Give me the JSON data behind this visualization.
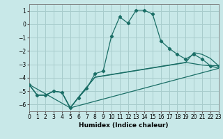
{
  "xlabel": "Humidex (Indice chaleur)",
  "background_color": "#c8e8e8",
  "grid_color": "#a8cccc",
  "line_color": "#1a6e66",
  "xlim": [
    0,
    23
  ],
  "ylim": [
    -6.5,
    1.5
  ],
  "yticks": [
    1,
    0,
    -1,
    -2,
    -3,
    -4,
    -5,
    -6
  ],
  "xticks": [
    0,
    1,
    2,
    3,
    4,
    5,
    6,
    7,
    8,
    9,
    10,
    11,
    12,
    13,
    14,
    15,
    16,
    17,
    18,
    19,
    20,
    21,
    22,
    23
  ],
  "curve1_x": [
    0,
    1,
    2,
    3,
    4,
    5,
    6,
    7,
    8,
    9,
    10,
    11,
    12,
    13,
    14,
    15,
    16,
    17,
    18,
    19,
    20,
    21,
    22,
    23
  ],
  "curve1_y": [
    -4.5,
    -5.3,
    -5.3,
    -5.0,
    -5.1,
    -6.25,
    -5.5,
    -4.8,
    -3.7,
    -3.5,
    -0.9,
    0.55,
    0.08,
    1.05,
    1.05,
    0.75,
    -1.25,
    -1.8,
    -2.25,
    -2.6,
    -2.25,
    -2.6,
    -3.1,
    -3.1
  ],
  "curve2_x": [
    0,
    1,
    2,
    3,
    4,
    5,
    6,
    7,
    8,
    9,
    10,
    11,
    12,
    13,
    14,
    15,
    16,
    17,
    18,
    19,
    20,
    21,
    22,
    23
  ],
  "curve2_y": [
    -4.5,
    -5.3,
    -5.3,
    -5.0,
    -5.1,
    -6.25,
    -5.45,
    -4.7,
    -3.95,
    -3.85,
    -3.75,
    -3.65,
    -3.55,
    -3.45,
    -3.35,
    -3.25,
    -3.15,
    -3.05,
    -2.95,
    -2.85,
    -2.95,
    -3.05,
    -3.1,
    -3.3
  ],
  "curve3_x": [
    0,
    5,
    23
  ],
  "curve3_y": [
    -4.5,
    -6.25,
    -3.3
  ],
  "curve4_x": [
    0,
    1,
    2,
    3,
    4,
    5,
    6,
    7,
    8,
    9,
    10,
    11,
    12,
    13,
    14,
    15,
    16,
    17,
    18,
    19,
    20,
    21,
    22,
    23
  ],
  "curve4_y": [
    -4.5,
    -5.3,
    -5.3,
    -5.0,
    -5.1,
    -6.25,
    -5.48,
    -4.72,
    -3.97,
    -3.87,
    -3.77,
    -3.67,
    -3.57,
    -3.47,
    -3.37,
    -3.27,
    -3.17,
    -3.07,
    -2.97,
    -2.87,
    -2.12,
    -2.25,
    -2.55,
    -3.1
  ]
}
